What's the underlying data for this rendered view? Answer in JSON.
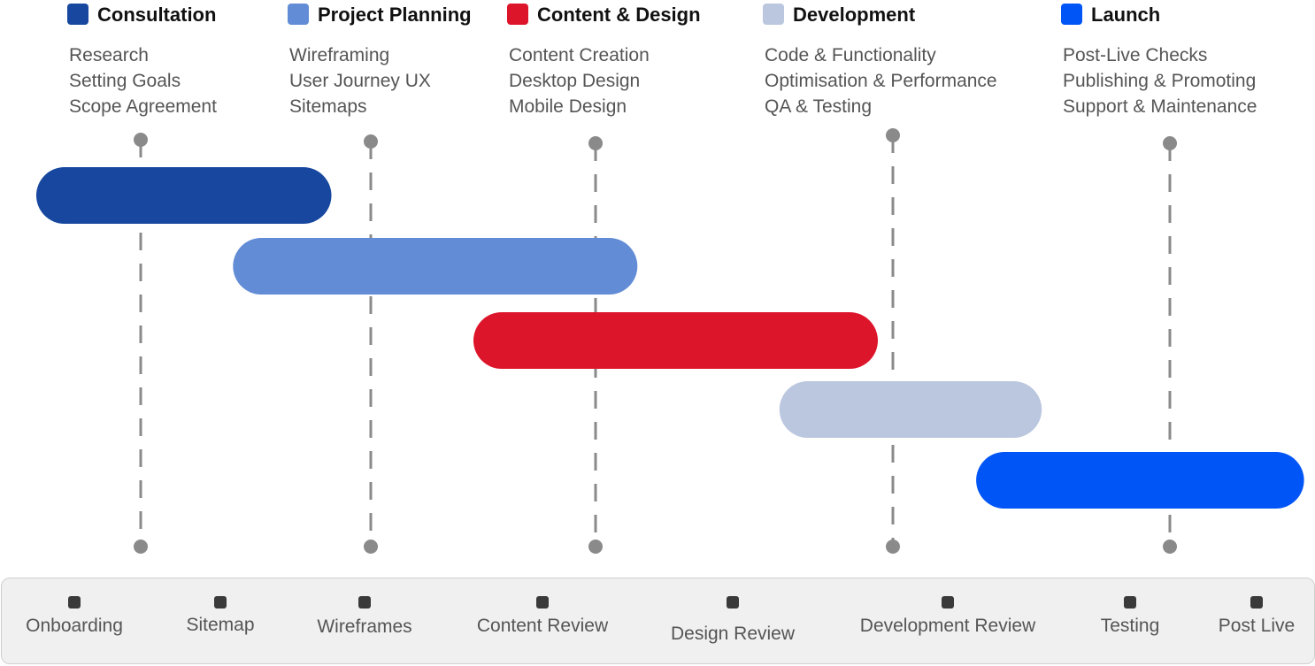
{
  "chart_data": {
    "type": "gantt",
    "phases": [
      {
        "name": "Consultation",
        "color": "#17479e",
        "tasks": [
          "Research",
          "Setting Goals",
          "Scope Agreement"
        ],
        "start": 0.0,
        "end": 1.35
      },
      {
        "name": "Project Planning",
        "color": "#628dd6",
        "tasks": [
          "Wireframing",
          "User Journey UX",
          "Sitemaps"
        ],
        "start": 0.9,
        "end": 2.75
      },
      {
        "name": "Content & Design",
        "color": "#dd152b",
        "tasks": [
          "Content Creation",
          "Desktop Design",
          "Mobile Design"
        ],
        "start": 2.0,
        "end": 3.85
      },
      {
        "name": "Development",
        "color": "#bbc7df",
        "tasks": [
          "Code & Functionality",
          "Optimisation & Performance",
          "QA & Testing"
        ],
        "start": 3.4,
        "end": 4.6
      },
      {
        "name": "Launch",
        "color": "#0055f7",
        "tasks": [
          "Post-Live Checks",
          "Publishing & Promoting",
          "Support & Maintenance"
        ],
        "start": 4.3,
        "end": 5.8
      }
    ]
  },
  "milestones": [
    "Onboarding",
    "Sitemap",
    "Wireframes",
    "Content Review",
    "Design Review",
    "Development Review",
    "Testing",
    "Post Live"
  ],
  "colors": {
    "guide": "#8a8a8a",
    "marker": "#3a3a3a",
    "panel": "#f0f0f0"
  }
}
